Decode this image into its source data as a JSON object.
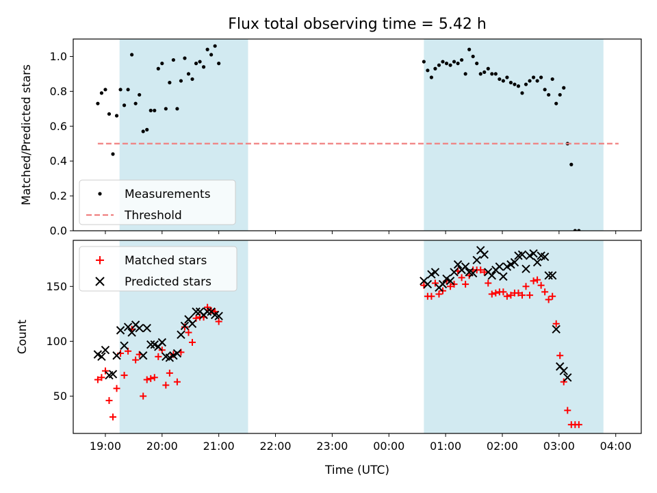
{
  "chart_data": {
    "title": "Flux total observing time = 5.42 h",
    "xlabel": "Time (UTC)",
    "x_ticks": [
      "19:00",
      "20:00",
      "21:00",
      "22:00",
      "23:00",
      "00:00",
      "01:00",
      "02:00",
      "03:00",
      "04:00"
    ],
    "xlim": [
      "18:26",
      "04:27"
    ],
    "shaded_intervals": [
      [
        "19:15",
        "21:31"
      ],
      [
        "00:37",
        "03:47"
      ]
    ],
    "shade_color": "#add8e6",
    "panels": [
      {
        "type": "scatter",
        "ylabel": "Matched/Predicted stars",
        "ylim": [
          0,
          1.1
        ],
        "yticks": [
          0.0,
          0.2,
          0.4,
          0.6,
          0.8,
          1.0
        ],
        "legend_position": "lower-left",
        "grid": false,
        "series": [
          {
            "name": "Measurements",
            "marker": "dot",
            "color": "#000000",
            "points": [
              [
                "18:52",
                0.73
              ],
              [
                "18:56",
                0.79
              ],
              [
                "19:00",
                0.81
              ],
              [
                "19:04",
                0.67
              ],
              [
                "19:08",
                0.44
              ],
              [
                "19:12",
                0.66
              ],
              [
                "19:16",
                0.81
              ],
              [
                "19:20",
                0.72
              ],
              [
                "19:24",
                0.81
              ],
              [
                "19:28",
                1.01
              ],
              [
                "19:32",
                0.73
              ],
              [
                "19:36",
                0.78
              ],
              [
                "19:40",
                0.57
              ],
              [
                "19:44",
                0.58
              ],
              [
                "19:48",
                0.69
              ],
              [
                "19:52",
                0.69
              ],
              [
                "19:56",
                0.93
              ],
              [
                "20:00",
                0.96
              ],
              [
                "20:04",
                0.7
              ],
              [
                "20:08",
                0.85
              ],
              [
                "20:12",
                0.98
              ],
              [
                "20:16",
                0.7
              ],
              [
                "20:20",
                0.86
              ],
              [
                "20:24",
                0.99
              ],
              [
                "20:28",
                0.9
              ],
              [
                "20:32",
                0.87
              ],
              [
                "20:36",
                0.96
              ],
              [
                "20:40",
                0.97
              ],
              [
                "20:44",
                0.94
              ],
              [
                "20:48",
                1.04
              ],
              [
                "20:52",
                1.01
              ],
              [
                "20:56",
                1.06
              ],
              [
                "21:00",
                0.96
              ],
              [
                "00:37",
                0.97
              ],
              [
                "00:41",
                0.92
              ],
              [
                "00:45",
                0.88
              ],
              [
                "00:49",
                0.93
              ],
              [
                "00:53",
                0.95
              ],
              [
                "00:57",
                0.97
              ],
              [
                "01:01",
                0.96
              ],
              [
                "01:05",
                0.95
              ],
              [
                "01:09",
                0.97
              ],
              [
                "01:13",
                0.96
              ],
              [
                "01:17",
                0.98
              ],
              [
                "01:21",
                0.9
              ],
              [
                "01:25",
                1.04
              ],
              [
                "01:29",
                1.0
              ],
              [
                "01:33",
                0.96
              ],
              [
                "01:37",
                0.9
              ],
              [
                "01:41",
                0.91
              ],
              [
                "01:45",
                0.93
              ],
              [
                "01:49",
                0.9
              ],
              [
                "01:53",
                0.9
              ],
              [
                "01:57",
                0.87
              ],
              [
                "02:01",
                0.86
              ],
              [
                "02:05",
                0.88
              ],
              [
                "02:09",
                0.85
              ],
              [
                "02:13",
                0.84
              ],
              [
                "02:17",
                0.83
              ],
              [
                "02:21",
                0.79
              ],
              [
                "02:25",
                0.84
              ],
              [
                "02:29",
                0.86
              ],
              [
                "02:33",
                0.88
              ],
              [
                "02:37",
                0.86
              ],
              [
                "02:41",
                0.88
              ],
              [
                "02:45",
                0.81
              ],
              [
                "02:49",
                0.78
              ],
              [
                "02:53",
                0.87
              ],
              [
                "02:57",
                0.73
              ],
              [
                "03:01",
                0.78
              ],
              [
                "03:05",
                0.82
              ],
              [
                "03:09",
                0.5
              ],
              [
                "03:13",
                0.38
              ],
              [
                "03:17",
                0.0
              ],
              [
                "03:21",
                0.0
              ]
            ]
          },
          {
            "name": "Threshold",
            "style": "dashed",
            "color": "#f08080",
            "x": [
              "18:52",
              "04:03"
            ],
            "y": [
              0.5,
              0.5
            ]
          }
        ]
      },
      {
        "type": "scatter",
        "ylabel": "Count",
        "ylim": [
          16,
          192
        ],
        "yticks": [
          50,
          100,
          150
        ],
        "legend_position": "upper-left",
        "grid": false,
        "series": [
          {
            "name": "Matched stars",
            "marker": "plus",
            "color": "#ff0000",
            "points": [
              [
                "18:52",
                65
              ],
              [
                "18:56",
                67
              ],
              [
                "19:00",
                73
              ],
              [
                "19:04",
                46
              ],
              [
                "19:08",
                31
              ],
              [
                "19:12",
                57
              ],
              [
                "19:16",
                89
              ],
              [
                "19:20",
                69
              ],
              [
                "19:24",
                91
              ],
              [
                "19:28",
                111
              ],
              [
                "19:32",
                83
              ],
              [
                "19:36",
                88
              ],
              [
                "19:40",
                50
              ],
              [
                "19:44",
                65
              ],
              [
                "19:48",
                66
              ],
              [
                "19:52",
                67
              ],
              [
                "19:56",
                86
              ],
              [
                "20:00",
                92
              ],
              [
                "20:04",
                60
              ],
              [
                "20:08",
                71
              ],
              [
                "20:12",
                88
              ],
              [
                "20:16",
                63
              ],
              [
                "20:20",
                90
              ],
              [
                "20:24",
                113
              ],
              [
                "20:28",
                108
              ],
              [
                "20:32",
                99
              ],
              [
                "20:36",
                121
              ],
              [
                "20:40",
                122
              ],
              [
                "20:44",
                122
              ],
              [
                "20:48",
                131
              ],
              [
                "20:52",
                128
              ],
              [
                "20:56",
                127
              ],
              [
                "21:00",
                118
              ],
              [
                "00:37",
                151
              ],
              [
                "00:41",
                141
              ],
              [
                "00:45",
                141
              ],
              [
                "00:49",
                153
              ],
              [
                "00:53",
                143
              ],
              [
                "00:57",
                146
              ],
              [
                "01:01",
                155
              ],
              [
                "01:05",
                150
              ],
              [
                "01:09",
                152
              ],
              [
                "01:13",
                164
              ],
              [
                "01:17",
                158
              ],
              [
                "01:21",
                152
              ],
              [
                "01:25",
                160
              ],
              [
                "01:29",
                165
              ],
              [
                "01:33",
                165
              ],
              [
                "01:37",
                165
              ],
              [
                "01:41",
                163
              ],
              [
                "01:45",
                153
              ],
              [
                "01:49",
                143
              ],
              [
                "01:53",
                144
              ],
              [
                "01:57",
                145
              ],
              [
                "02:01",
                145
              ],
              [
                "02:05",
                141
              ],
              [
                "02:09",
                142
              ],
              [
                "02:13",
                144
              ],
              [
                "02:17",
                144
              ],
              [
                "02:21",
                142
              ],
              [
                "02:25",
                150
              ],
              [
                "02:29",
                142
              ],
              [
                "02:33",
                155
              ],
              [
                "02:37",
                156
              ],
              [
                "02:41",
                151
              ],
              [
                "02:45",
                145
              ],
              [
                "02:49",
                138
              ],
              [
                "02:53",
                141
              ],
              [
                "02:57",
                116
              ],
              [
                "03:01",
                87
              ],
              [
                "03:05",
                63
              ],
              [
                "03:09",
                37
              ],
              [
                "03:13",
                24
              ],
              [
                "03:17",
                24
              ],
              [
                "03:21",
                24
              ]
            ]
          },
          {
            "name": "Predicted stars",
            "marker": "x",
            "color": "#000000",
            "points": [
              [
                "18:52",
                88
              ],
              [
                "18:56",
                86
              ],
              [
                "19:00",
                92
              ],
              [
                "19:04",
                69
              ],
              [
                "19:08",
                70
              ],
              [
                "19:12",
                87
              ],
              [
                "19:16",
                110
              ],
              [
                "19:20",
                96
              ],
              [
                "19:24",
                113
              ],
              [
                "19:28",
                108
              ],
              [
                "19:32",
                115
              ],
              [
                "19:36",
                112
              ],
              [
                "19:40",
                87
              ],
              [
                "19:44",
                112
              ],
              [
                "19:48",
                97
              ],
              [
                "19:52",
                97
              ],
              [
                "19:56",
                95
              ],
              [
                "20:00",
                99
              ],
              [
                "20:04",
                86
              ],
              [
                "20:08",
                85
              ],
              [
                "20:12",
                87
              ],
              [
                "20:16",
                89
              ],
              [
                "20:20",
                106
              ],
              [
                "20:24",
                114
              ],
              [
                "20:28",
                120
              ],
              [
                "20:32",
                116
              ],
              [
                "20:36",
                127
              ],
              [
                "20:40",
                127
              ],
              [
                "20:44",
                124
              ],
              [
                "20:48",
                127
              ],
              [
                "20:52",
                127
              ],
              [
                "20:56",
                124
              ],
              [
                "21:00",
                123
              ],
              [
                "00:37",
                155
              ],
              [
                "00:41",
                152
              ],
              [
                "00:45",
                161
              ],
              [
                "00:49",
                163
              ],
              [
                "00:53",
                149
              ],
              [
                "00:57",
                152
              ],
              [
                "01:01",
                157
              ],
              [
                "01:05",
                155
              ],
              [
                "01:09",
                163
              ],
              [
                "01:13",
                170
              ],
              [
                "01:17",
                165
              ],
              [
                "01:21",
                168
              ],
              [
                "01:25",
                163
              ],
              [
                "01:29",
                162
              ],
              [
                "01:33",
                174
              ],
              [
                "01:37",
                183
              ],
              [
                "01:41",
                179
              ],
              [
                "01:45",
                163
              ],
              [
                "01:49",
                160
              ],
              [
                "01:53",
                165
              ],
              [
                "01:57",
                168
              ],
              [
                "02:01",
                159
              ],
              [
                "02:05",
                168
              ],
              [
                "02:09",
                170
              ],
              [
                "02:13",
                172
              ],
              [
                "02:17",
                178
              ],
              [
                "02:21",
                179
              ],
              [
                "02:25",
                166
              ],
              [
                "02:29",
                178
              ],
              [
                "02:33",
                180
              ],
              [
                "02:37",
                172
              ],
              [
                "02:41",
                178
              ],
              [
                "02:45",
                177
              ],
              [
                "02:49",
                160
              ],
              [
                "02:53",
                160
              ],
              [
                "02:57",
                111
              ],
              [
                "03:01",
                77
              ],
              [
                "03:05",
                73
              ],
              [
                "03:09",
                67
              ]
            ]
          }
        ]
      }
    ]
  }
}
